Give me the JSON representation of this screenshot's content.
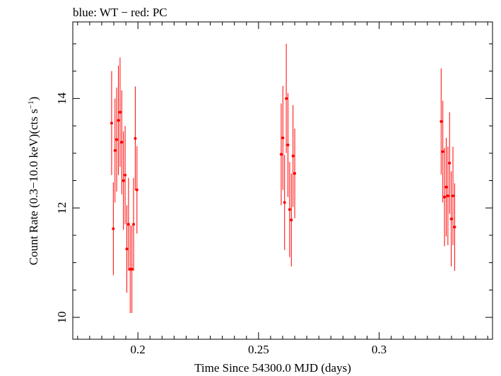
{
  "chart_data": {
    "type": "scatter",
    "title": "blue: WT − red: PC",
    "xlabel": "Time Since 54300.0 MJD (days)",
    "ylabel_main": "Count Rate (0.3−10.0 keV)(cts s",
    "ylabel_sup": "−1",
    "ylabel_end": ")",
    "xlim": [
      0.173,
      0.347
    ],
    "ylim": [
      9.6,
      15.4
    ],
    "xticks": [
      0.2,
      0.25,
      0.3
    ],
    "xtick_labels": [
      "0.2",
      "0.25",
      "0.3"
    ],
    "xticks_minor": [
      0.175,
      0.18,
      0.185,
      0.19,
      0.195,
      0.205,
      0.21,
      0.215,
      0.22,
      0.225,
      0.23,
      0.235,
      0.24,
      0.245,
      0.255,
      0.26,
      0.265,
      0.27,
      0.275,
      0.28,
      0.285,
      0.29,
      0.295,
      0.305,
      0.31,
      0.315,
      0.32,
      0.325,
      0.33,
      0.335,
      0.34,
      0.345
    ],
    "yticks": [
      10,
      12,
      14
    ],
    "ytick_labels": [
      "10",
      "12",
      "14"
    ],
    "yticks_minor": [
      10.5,
      11,
      11.5,
      12.5,
      13,
      13.5,
      14.5,
      15
    ],
    "series": [
      {
        "name": "PC",
        "color": "#ff0000",
        "points": [
          {
            "x": 0.1891,
            "y": 13.55,
            "err": 0.95
          },
          {
            "x": 0.1898,
            "y": 11.62,
            "err": 0.85
          },
          {
            "x": 0.1905,
            "y": 13.05,
            "err": 0.95
          },
          {
            "x": 0.1912,
            "y": 13.25,
            "err": 0.95
          },
          {
            "x": 0.1919,
            "y": 13.6,
            "err": 1.0
          },
          {
            "x": 0.1926,
            "y": 13.75,
            "err": 1.0
          },
          {
            "x": 0.1933,
            "y": 13.2,
            "err": 0.95
          },
          {
            "x": 0.194,
            "y": 12.5,
            "err": 0.9
          },
          {
            "x": 0.1947,
            "y": 12.6,
            "err": 0.9
          },
          {
            "x": 0.1954,
            "y": 11.25,
            "err": 0.8
          },
          {
            "x": 0.1961,
            "y": 11.7,
            "err": 0.85
          },
          {
            "x": 0.1968,
            "y": 10.88,
            "err": 0.8
          },
          {
            "x": 0.1975,
            "y": 10.88,
            "err": 0.8
          },
          {
            "x": 0.1982,
            "y": 11.7,
            "err": 0.85
          },
          {
            "x": 0.1989,
            "y": 13.27,
            "err": 0.95
          },
          {
            "x": 0.1996,
            "y": 12.33,
            "err": 0.8
          },
          {
            "x": 0.2594,
            "y": 12.98,
            "err": 0.93
          },
          {
            "x": 0.2601,
            "y": 13.28,
            "err": 0.95
          },
          {
            "x": 0.2608,
            "y": 12.1,
            "err": 0.87
          },
          {
            "x": 0.2615,
            "y": 14.0,
            "err": 1.0
          },
          {
            "x": 0.2622,
            "y": 13.15,
            "err": 0.95
          },
          {
            "x": 0.2629,
            "y": 11.97,
            "err": 0.87
          },
          {
            "x": 0.2636,
            "y": 11.78,
            "err": 0.85
          },
          {
            "x": 0.2643,
            "y": 12.95,
            "err": 0.93
          },
          {
            "x": 0.265,
            "y": 12.63,
            "err": 0.82
          },
          {
            "x": 0.3257,
            "y": 13.58,
            "err": 0.97
          },
          {
            "x": 0.3264,
            "y": 13.03,
            "err": 0.93
          },
          {
            "x": 0.3271,
            "y": 12.2,
            "err": 0.9
          },
          {
            "x": 0.3278,
            "y": 12.38,
            "err": 0.9
          },
          {
            "x": 0.3285,
            "y": 12.22,
            "err": 0.9
          },
          {
            "x": 0.3292,
            "y": 12.82,
            "err": 0.93
          },
          {
            "x": 0.3299,
            "y": 11.8,
            "err": 0.87
          },
          {
            "x": 0.3306,
            "y": 12.22,
            "err": 0.9
          },
          {
            "x": 0.3313,
            "y": 11.65,
            "err": 0.8
          }
        ]
      }
    ]
  }
}
